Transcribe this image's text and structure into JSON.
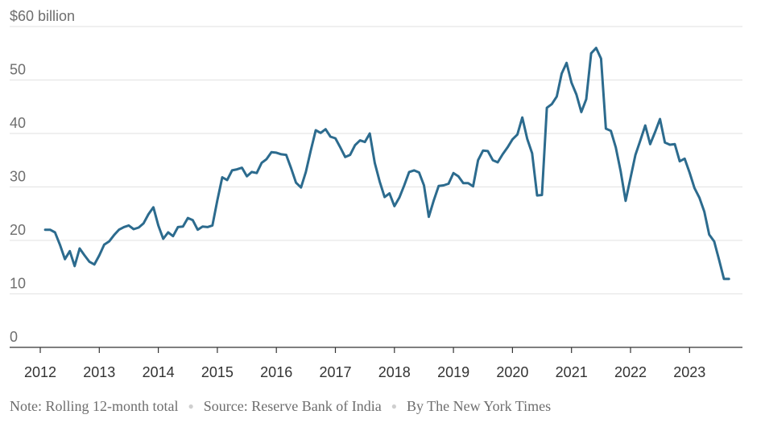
{
  "chart_data": {
    "type": "line",
    "title": "",
    "ylabel": "",
    "y_top_label": "$60 billion",
    "ylim": [
      0,
      60
    ],
    "yticks": [
      0,
      10,
      20,
      30,
      40,
      50,
      60
    ],
    "ytick_labels": [
      "0",
      "10",
      "20",
      "30",
      "40",
      "50",
      "$60 billion"
    ],
    "xlim": [
      2012,
      2024
    ],
    "xticks": [
      2012,
      2013,
      2014,
      2015,
      2016,
      2017,
      2018,
      2019,
      2020,
      2021,
      2022,
      2023
    ],
    "xtick_labels": [
      "2012",
      "2013",
      "2014",
      "2015",
      "2016",
      "2017",
      "2018",
      "2019",
      "2020",
      "2021",
      "2022",
      "2023"
    ],
    "grid": true,
    "line_color": "#2c6b8e",
    "series": [
      {
        "x": [
          2012.083,
          2012.167,
          2012.25,
          2012.333,
          2012.417,
          2012.5,
          2012.583,
          2012.667,
          2012.75,
          2012.833,
          2012.917,
          2013.0,
          2013.083,
          2013.167,
          2013.25,
          2013.333,
          2013.417,
          2013.5,
          2013.583,
          2013.667,
          2013.75,
          2013.833,
          2013.917,
          2014.0,
          2014.083,
          2014.167,
          2014.25,
          2014.333,
          2014.417,
          2014.5,
          2014.583,
          2014.667,
          2014.75,
          2014.833,
          2014.917,
          2015.0,
          2015.083,
          2015.167,
          2015.25,
          2015.333,
          2015.417,
          2015.5,
          2015.583,
          2015.667,
          2015.75,
          2015.833,
          2015.917,
          2016.0,
          2016.083,
          2016.167,
          2016.25,
          2016.333,
          2016.417,
          2016.5,
          2016.583,
          2016.667,
          2016.75,
          2016.833,
          2016.917,
          2017.0,
          2017.083,
          2017.167,
          2017.25,
          2017.333,
          2017.417,
          2017.5,
          2017.583,
          2017.667,
          2017.75,
          2017.833,
          2017.917,
          2018.0,
          2018.083,
          2018.167,
          2018.25,
          2018.333,
          2018.417,
          2018.5,
          2018.583,
          2018.667,
          2018.75,
          2018.833,
          2018.917,
          2019.0,
          2019.083,
          2019.167,
          2019.25,
          2019.333,
          2019.417,
          2019.5,
          2019.583,
          2019.667,
          2019.75,
          2019.833,
          2019.917,
          2020.0,
          2020.083,
          2020.167,
          2020.25,
          2020.333,
          2020.417,
          2020.5,
          2020.583,
          2020.667,
          2020.75,
          2020.833,
          2020.917,
          2021.0,
          2021.083,
          2021.167,
          2021.25,
          2021.333,
          2021.417,
          2021.5,
          2021.583,
          2021.667,
          2021.75,
          2021.833,
          2021.917,
          2022.0,
          2022.083,
          2022.167,
          2022.25,
          2022.333,
          2022.417,
          2022.5,
          2022.583,
          2022.667,
          2022.75,
          2022.833,
          2022.917,
          2023.0,
          2023.083,
          2023.167,
          2023.25,
          2023.333,
          2023.417,
          2023.5,
          2023.583,
          2023.667
        ],
        "values": [
          22.0,
          22.0,
          21.5,
          19.2,
          16.5,
          18.0,
          15.2,
          18.5,
          17.2,
          16.0,
          15.5,
          17.2,
          19.2,
          19.8,
          21.0,
          22.0,
          22.5,
          22.8,
          22.1,
          22.4,
          23.2,
          24.9,
          26.2,
          22.8,
          20.3,
          21.5,
          20.8,
          22.5,
          22.6,
          24.2,
          23.8,
          22.0,
          22.6,
          22.5,
          22.8,
          27.5,
          31.8,
          31.3,
          33.1,
          33.3,
          33.6,
          32.0,
          32.8,
          32.6,
          34.5,
          35.2,
          36.5,
          36.4,
          36.1,
          36.0,
          33.5,
          30.8,
          29.9,
          32.8,
          36.8,
          40.6,
          40.1,
          40.8,
          39.4,
          39.1,
          37.4,
          35.6,
          36.0,
          37.8,
          38.7,
          38.4,
          40.0,
          34.5,
          31.0,
          28.1,
          28.8,
          26.4,
          28.0,
          30.3,
          32.8,
          33.1,
          32.7,
          30.3,
          24.4,
          27.5,
          30.2,
          30.3,
          30.6,
          32.6,
          32.0,
          30.7,
          30.7,
          30.1,
          35.0,
          36.8,
          36.7,
          35.0,
          34.6,
          36.1,
          37.4,
          38.9,
          39.8,
          43.0,
          39.0,
          36.3,
          28.4,
          28.5,
          44.8,
          45.5,
          46.9,
          51.2,
          53.2,
          49.5,
          47.3,
          44.0,
          46.4,
          55.0,
          56.0,
          54.0,
          40.9,
          40.5,
          37.4,
          32.9,
          27.4,
          31.7,
          36.0,
          38.7,
          41.5,
          38.0,
          40.3,
          42.7,
          38.3,
          37.9,
          38.0,
          34.8,
          35.3,
          32.7,
          29.8,
          28.0,
          25.4,
          21.1,
          19.8,
          16.4,
          12.8,
          12.8
        ]
      }
    ],
    "footer": {
      "note": "Note: Rolling 12-month total",
      "source": "Source: Reserve Bank of India",
      "credit": "By The New York Times",
      "separator": "●"
    }
  }
}
